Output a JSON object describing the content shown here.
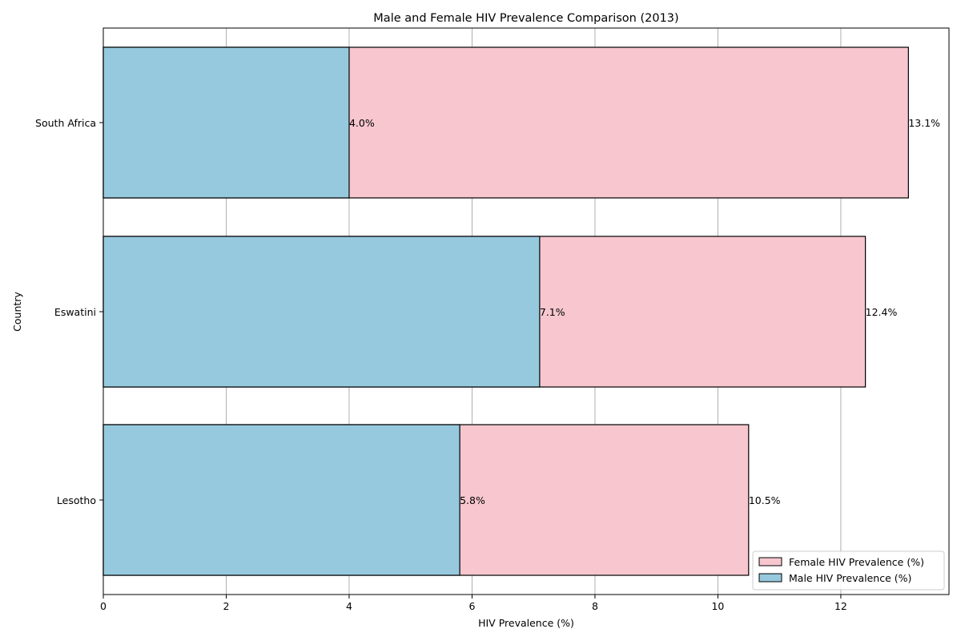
{
  "chart_data": {
    "type": "bar",
    "orientation": "horizontal",
    "title": "Male and Female HIV Prevalence Comparison (2013)",
    "xlabel": "HIV Prevalence (%)",
    "ylabel": "Country",
    "categories": [
      "South Africa",
      "Eswatini",
      "Lesotho"
    ],
    "series": [
      {
        "name": "Female HIV Prevalence (%)",
        "values": [
          13.1,
          12.4,
          10.5
        ],
        "color": "#f7c6cf"
      },
      {
        "name": "Male HIV Prevalence (%)",
        "values": [
          4.0,
          7.1,
          5.8
        ],
        "color": "#96c9de"
      }
    ],
    "data_labels": {
      "female": [
        "13.1%",
        "12.4%",
        "10.5%"
      ],
      "male": [
        "4.0%",
        "7.1%",
        "5.8%"
      ]
    },
    "xlim": [
      0,
      13.76
    ],
    "xticks": [
      0,
      2,
      4,
      6,
      8,
      10,
      12
    ],
    "grid": "vertical",
    "legend_position": "bottom-right"
  }
}
